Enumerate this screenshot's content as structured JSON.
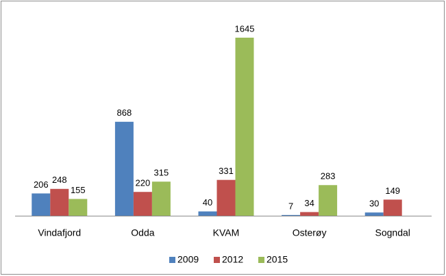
{
  "chart_data": {
    "type": "bar",
    "categories": [
      "Vindafjord",
      "Odda",
      "KVAM",
      "Osterøy",
      "Sogndal"
    ],
    "series": [
      {
        "name": "2009",
        "color": "#4f81bd",
        "values": [
          206,
          868,
          40,
          7,
          30
        ]
      },
      {
        "name": "2012",
        "color": "#c0504d",
        "values": [
          248,
          220,
          331,
          34,
          149
        ]
      },
      {
        "name": "2015",
        "color": "#9bbb59",
        "values": [
          155,
          315,
          1645,
          283,
          null
        ]
      }
    ],
    "legend": "bottom",
    "grid": false
  }
}
